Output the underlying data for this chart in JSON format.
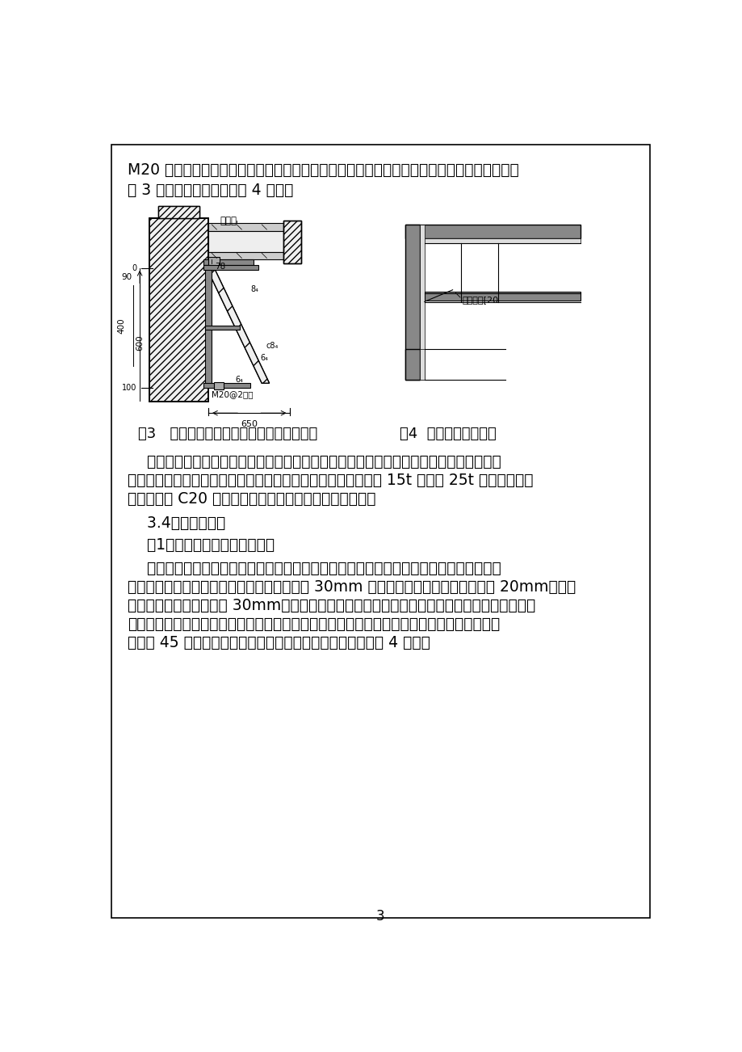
{
  "page_bg": "#ffffff",
  "border_color": "#000000",
  "text_color": "#000000",
  "page_number": "3",
  "para1_line1": "M20 膨胀螺栓，将钢牛腿三角托架固定于围护桩上。钢围檩、钢牛腿三角托架安装见详图见下",
  "para1_line2": "图 3 及钢围檩角部平面图图 4 所示：",
  "fig3_caption": "图3   钢围檩、钢牛腿三角托架安装制作详图",
  "fig4_caption": "图4  钢围檩角部平面图",
  "para2_lines": [
    "    每层土方开挖至支撑位置后，根据测量组放出的支撑中心线反算出钢牛腿三角托架顶面标",
    "高，将钢牛腿三角托架固定于围护桩上。钢围檩、钢支撑均采用 15t 门吊或 25t 汽车吊吊装就",
    "位。然后用 C20 细石混凝土填充钢围檩与围护桩间空隙。"
  ],
  "section34": "    3.4、钢支撑施工",
  "section341": "    （1）钢管支撑在地面提前拼装",
  "para3_lines": [
    "    直撑安装前根据相关计算，将标准管段先在地面进行预拼接并检查支撑的平整度，保证支",
    "撑长度适当；其两端中心连线的偏差度控制在 30mm 以内，两端中心标高偏差不大于 20mm，同层",
    "支撑中心标高偏差不大于 30mm。经检查合格的支撑按部位进行编号以免错用，支撑采用吊机一",
    "次性整体吊装到位，挖机配合。钢支撑吊装到位，用两个组合液压千斤顶同步施加预加轴力，",
    "最后用 45 号铸钢钢楔塞紧。钢支撑、活动端安装方法见下图 4 所示："
  ]
}
